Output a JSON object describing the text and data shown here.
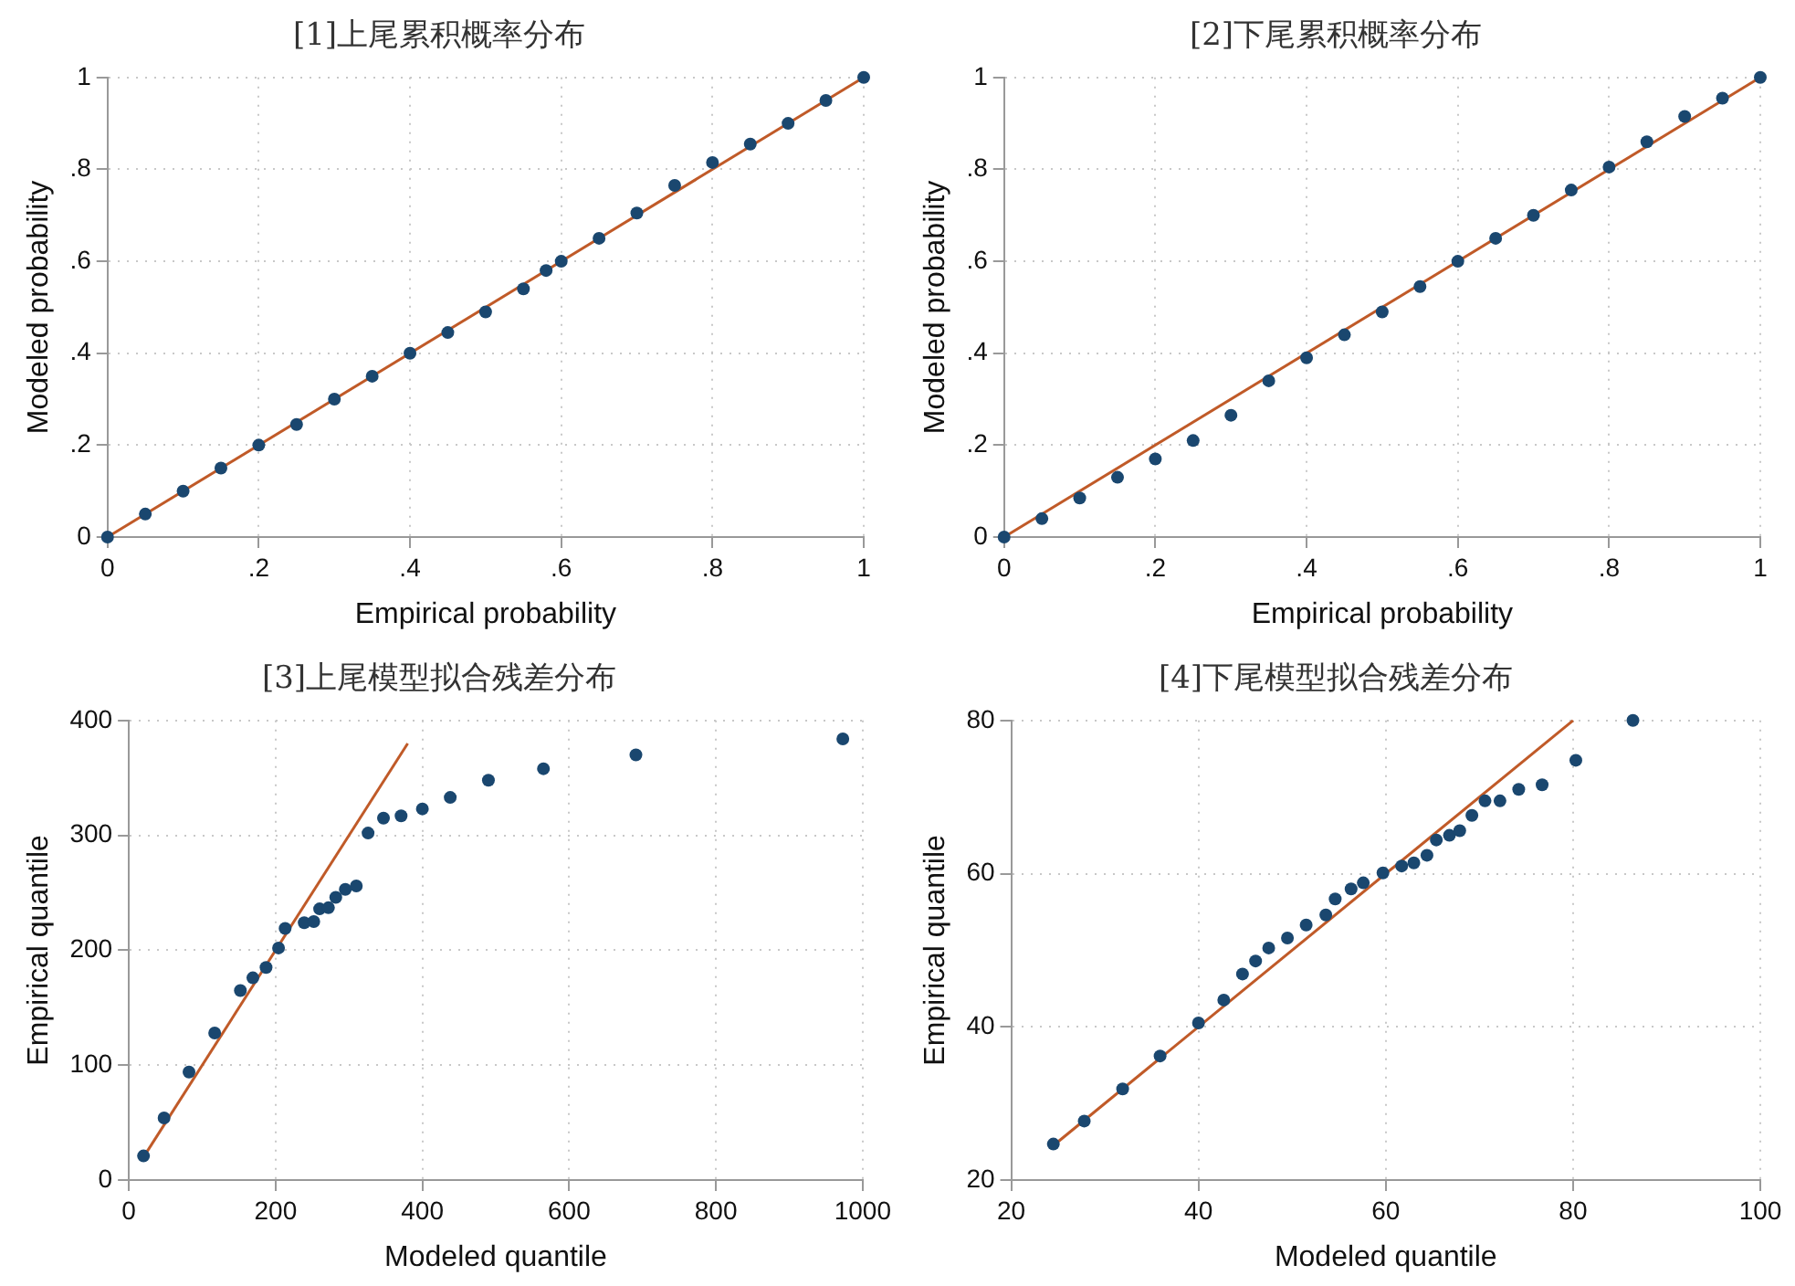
{
  "chart_data": [
    {
      "type": "scatter",
      "title": "[1]上尾累积概率分布",
      "xlabel": "Empirical probability",
      "ylabel": "Modeled probability",
      "xlim": [
        0,
        1
      ],
      "ylim": [
        0,
        1
      ],
      "xticks": [
        0,
        {
          "value": 0.2,
          "label": ".2"
        },
        {
          "value": 0.4,
          "label": ".4"
        },
        {
          "value": 0.6,
          "label": ".6"
        },
        {
          "value": 0.8,
          "label": ".8"
        },
        1
      ],
      "yticks": [
        0,
        {
          "value": 0.2,
          "label": ".2"
        },
        {
          "value": 0.4,
          "label": ".4"
        },
        {
          "value": 0.6,
          "label": ".6"
        },
        {
          "value": 0.8,
          "label": ".8"
        },
        1
      ],
      "grid": true,
      "marker": "circle",
      "series": [
        {
          "color": "#1a476f",
          "x": [
            0,
            0.05,
            0.1,
            0.15,
            0.2,
            0.25,
            0.3,
            0.35,
            0.4,
            0.45,
            0.5,
            0.55,
            0.58,
            0.6,
            0.65,
            0.7,
            0.75,
            0.8,
            0.85,
            0.9,
            0.95,
            1
          ],
          "values": [
            0,
            0.05,
            0.1,
            0.15,
            0.2,
            0.245,
            0.3,
            0.35,
            0.4,
            0.445,
            0.49,
            0.54,
            0.58,
            0.6,
            0.65,
            0.705,
            0.765,
            0.815,
            0.855,
            0.9,
            0.95,
            1
          ]
        },
        {
          "type": "line",
          "marker": "none",
          "color": "#c05a28",
          "x": [
            0,
            1
          ],
          "values": [
            0,
            1
          ]
        }
      ]
    },
    {
      "type": "scatter",
      "title": "[2]下尾累积概率分布",
      "xlabel": "Empirical probability",
      "ylabel": "Modeled probability",
      "xlim": [
        0,
        1
      ],
      "ylim": [
        0,
        1
      ],
      "xticks": [
        0,
        {
          "value": 0.2,
          "label": ".2"
        },
        {
          "value": 0.4,
          "label": ".4"
        },
        {
          "value": 0.6,
          "label": ".6"
        },
        {
          "value": 0.8,
          "label": ".8"
        },
        1
      ],
      "yticks": [
        0,
        {
          "value": 0.2,
          "label": ".2"
        },
        {
          "value": 0.4,
          "label": ".4"
        },
        {
          "value": 0.6,
          "label": ".6"
        },
        {
          "value": 0.8,
          "label": ".8"
        },
        1
      ],
      "grid": true,
      "marker": "circle",
      "series": [
        {
          "color": "#1a476f",
          "x": [
            0,
            0.05,
            0.1,
            0.15,
            0.2,
            0.25,
            0.3,
            0.35,
            0.4,
            0.45,
            0.5,
            0.55,
            0.6,
            0.65,
            0.7,
            0.75,
            0.8,
            0.85,
            0.9,
            0.95,
            1
          ],
          "values": [
            0,
            0.04,
            0.085,
            0.13,
            0.17,
            0.21,
            0.265,
            0.34,
            0.39,
            0.44,
            0.49,
            0.545,
            0.6,
            0.65,
            0.7,
            0.755,
            0.805,
            0.86,
            0.915,
            0.955,
            1
          ]
        },
        {
          "type": "line",
          "marker": "none",
          "color": "#c05a28",
          "x": [
            0,
            1
          ],
          "values": [
            0,
            1
          ]
        }
      ]
    },
    {
      "type": "scatter",
      "title": "[3]上尾模型拟合残差分布",
      "xlabel": "Modeled quantile",
      "ylabel": "Empirical quantile",
      "xlim": [
        0,
        1000
      ],
      "ylim": [
        0,
        400
      ],
      "xticks": [
        0,
        200,
        400,
        600,
        800,
        1000
      ],
      "yticks": [
        0,
        100,
        200,
        300,
        400
      ],
      "grid": true,
      "marker": "circle",
      "series": [
        {
          "color": "#1a476f",
          "x": [
            20,
            48,
            82,
            117,
            152,
            169,
            187,
            204,
            213,
            239,
            252,
            260,
            272,
            282,
            295,
            310,
            326,
            347,
            371,
            400,
            438,
            490,
            565,
            691,
            973
          ],
          "values": [
            21,
            54,
            94,
            128,
            165,
            176,
            185,
            202,
            219,
            224,
            225,
            236,
            237,
            246,
            253,
            256,
            302,
            315,
            317,
            323,
            333,
            348,
            358,
            370,
            384
          ]
        },
        {
          "type": "line",
          "marker": "none",
          "color": "#c05a28",
          "x": [
            20,
            380
          ],
          "values": [
            20,
            380
          ]
        }
      ]
    },
    {
      "type": "scatter",
      "title": "[4]下尾模型拟合残差分布",
      "xlabel": "Modeled quantile",
      "ylabel": "Empirical quantile",
      "xlim": [
        20,
        100
      ],
      "ylim": [
        20,
        80
      ],
      "xticks": [
        20,
        40,
        60,
        80,
        100
      ],
      "yticks": [
        20,
        40,
        60,
        80
      ],
      "grid": true,
      "marker": "circle",
      "series": [
        {
          "color": "#1a476f",
          "x": [
            24.5,
            27.8,
            31.9,
            35.9,
            40,
            42.7,
            44.7,
            46.1,
            47.5,
            49.5,
            51.5,
            53.6,
            54.6,
            56.3,
            57.6,
            59.7,
            61.7,
            63,
            64.4,
            65.4,
            66.8,
            67.9,
            69.2,
            70.6,
            72.2,
            74.2,
            76.7,
            80.3,
            86.4
          ],
          "values": [
            24.7,
            27.7,
            31.9,
            36.2,
            40.5,
            43.5,
            46.9,
            48.6,
            50.3,
            51.6,
            53.3,
            54.6,
            56.7,
            58,
            58.8,
            60.1,
            61,
            61.4,
            62.4,
            64.4,
            65,
            65.6,
            67.6,
            69.5,
            69.5,
            71,
            71.6,
            74.8,
            80
          ]
        },
        {
          "type": "line",
          "marker": "none",
          "color": "#c05a28",
          "x": [
            24.5,
            80
          ],
          "values": [
            24.5,
            80
          ]
        }
      ]
    }
  ]
}
